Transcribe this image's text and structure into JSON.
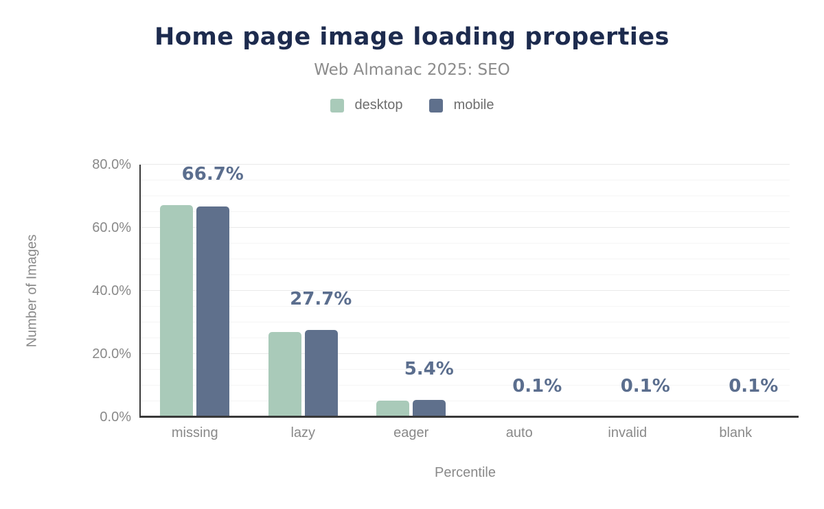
{
  "chart_data": {
    "type": "bar",
    "title": "Home page image loading properties",
    "subtitle": "Web Almanac 2025: SEO",
    "categories": [
      "missing",
      "lazy",
      "eager",
      "auto",
      "invalid",
      "blank"
    ],
    "series": [
      {
        "name": "desktop",
        "color": "#a9cab9",
        "values": [
          67.2,
          27.0,
          5.3,
          0.1,
          0.1,
          0.1
        ]
      },
      {
        "name": "mobile",
        "color": "#5f708c",
        "values": [
          66.7,
          27.7,
          5.4,
          0.1,
          0.1,
          0.1
        ]
      }
    ],
    "data_labels": [
      "66.7%",
      "27.7%",
      "5.4%",
      "0.1%",
      "0.1%",
      "0.1%"
    ],
    "xlabel": "Percentile",
    "ylabel": "Number of Images",
    "y_ticks": [
      {
        "label": "0.0%",
        "value": 0
      },
      {
        "label": "20.0%",
        "value": 20
      },
      {
        "label": "40.0%",
        "value": 40
      },
      {
        "label": "60.0%",
        "value": 60
      },
      {
        "label": "80.0%",
        "value": 80
      }
    ],
    "ylim": [
      0,
      80
    ],
    "grid": true,
    "gridline_step_minor": 5,
    "gridline_step_major": 20,
    "legend_position": "top",
    "colors": {
      "title": "#1d2b4e",
      "subtitle": "#8b8b8b",
      "axis_text": "#898989",
      "data_label": "#5b6e8e",
      "axis_line": "#383838",
      "gridline_minor": "#f5f5f5",
      "gridline_major": "#e9e9e9",
      "background": "#ffffff"
    }
  }
}
